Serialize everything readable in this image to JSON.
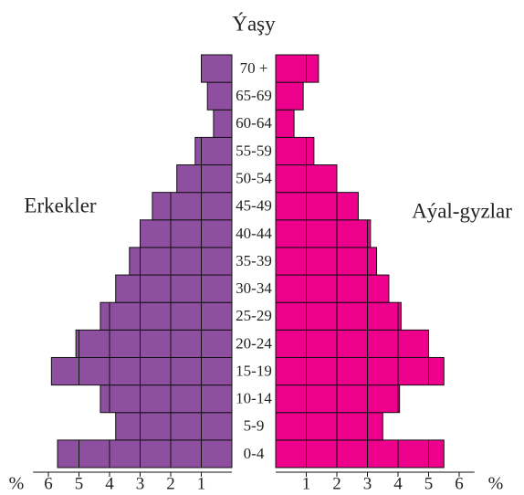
{
  "chart_data": {
    "type": "pyramid",
    "title": "Ýaşy",
    "x_unit": "%",
    "categories": [
      "0-4",
      "5-9",
      "10-14",
      "15-19",
      "20-24",
      "25-29",
      "30-34",
      "35-39",
      "40-44",
      "45-49",
      "50-54",
      "55-59",
      "60-64",
      "65-69",
      "70 +"
    ],
    "series": [
      {
        "name": "Erkekler",
        "color": "#8e4fa1",
        "values": [
          5.7,
          3.8,
          4.3,
          5.9,
          5.1,
          4.3,
          3.8,
          3.35,
          3.0,
          2.6,
          1.8,
          1.2,
          0.6,
          0.8,
          1.0
        ]
      },
      {
        "name": "Aýal-gyzlar",
        "color": "#ec008c",
        "values": [
          5.5,
          3.5,
          4.05,
          5.5,
          5.0,
          4.1,
          3.7,
          3.3,
          3.1,
          2.7,
          2.0,
          1.25,
          0.6,
          0.9,
          1.4
        ]
      }
    ],
    "xlim": [
      0,
      6.5
    ],
    "xticks": [
      1,
      2,
      3,
      4,
      5,
      6
    ],
    "grid": true
  }
}
